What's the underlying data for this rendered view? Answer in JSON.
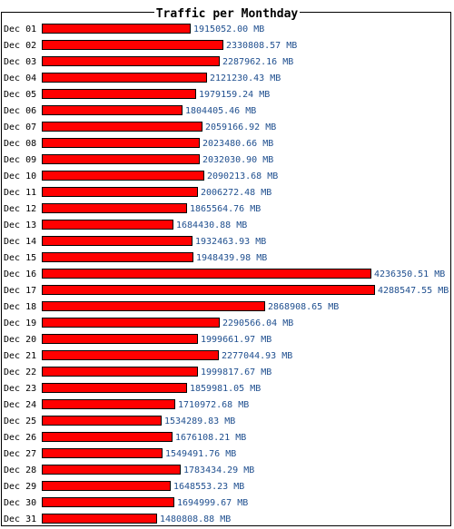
{
  "chart_data": {
    "type": "bar",
    "orientation": "horizontal",
    "title": "Traffic per Monthday",
    "unit": "MB",
    "bar_color": "#ff0000",
    "bar_outline_color": "#000000",
    "value_label_color": "#1f4f8f",
    "legend": "none",
    "grid": false,
    "categories": [
      "Dec 01",
      "Dec 02",
      "Dec 03",
      "Dec 04",
      "Dec 05",
      "Dec 06",
      "Dec 07",
      "Dec 08",
      "Dec 09",
      "Dec 10",
      "Dec 11",
      "Dec 12",
      "Dec 13",
      "Dec 14",
      "Dec 15",
      "Dec 16",
      "Dec 17",
      "Dec 18",
      "Dec 19",
      "Dec 20",
      "Dec 21",
      "Dec 22",
      "Dec 23",
      "Dec 24",
      "Dec 25",
      "Dec 26",
      "Dec 27",
      "Dec 28",
      "Dec 29",
      "Dec 30",
      "Dec 31"
    ],
    "values": [
      1915052.0,
      2330808.57,
      2287962.16,
      2121230.43,
      1979159.24,
      1804405.46,
      2059166.92,
      2023480.66,
      2032030.9,
      2090213.68,
      2006272.48,
      1865564.76,
      1684430.88,
      1932463.93,
      1948439.98,
      4236350.51,
      4288547.55,
      2868908.65,
      2290566.04,
      1999661.97,
      2277044.93,
      1999817.67,
      1859981.05,
      1710972.68,
      1534289.83,
      1676108.21,
      1549491.76,
      1783434.29,
      1648553.23,
      1694999.67,
      1480808.88
    ],
    "value_labels": [
      "1915052.00 MB",
      "2330808.57 MB",
      "2287962.16 MB",
      "2121230.43 MB",
      "1979159.24 MB",
      "1804405.46 MB",
      "2059166.92 MB",
      "2023480.66 MB",
      "2032030.90 MB",
      "2090213.68 MB",
      "2006272.48 MB",
      "1865564.76 MB",
      "1684430.88 MB",
      "1932463.93 MB",
      "1948439.98 MB",
      "4236350.51 MB",
      "4288547.55 MB",
      "2868908.65 MB",
      "2290566.04 MB",
      "1999661.97 MB",
      "2277044.93 MB",
      "1999817.67 MB",
      "1859981.05 MB",
      "1710972.68 MB",
      "1534289.83 MB",
      "1676108.21 MB",
      "1549491.76 MB",
      "1783434.29 MB",
      "1648553.23 MB",
      "1694999.67 MB",
      "1480808.88 MB"
    ]
  }
}
